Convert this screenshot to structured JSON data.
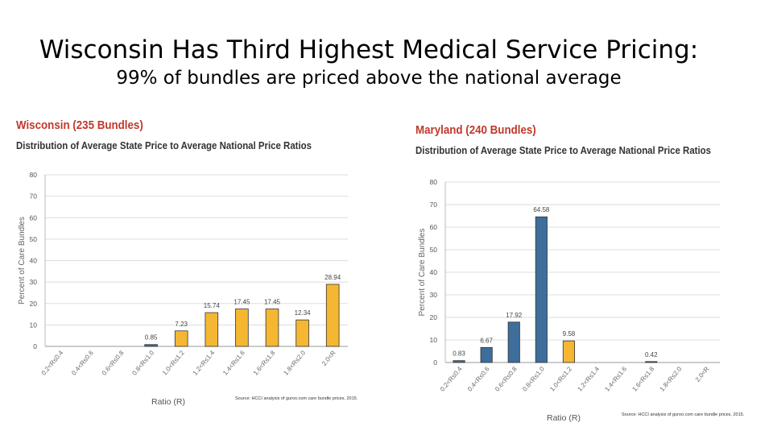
{
  "slide": {
    "title": "Wisconsin Has Third Highest Medical Service Pricing:",
    "subtitle": "99% of bundles are priced above the national average"
  },
  "colors": {
    "accent_bar": "#f5b731",
    "base_bar": "#3d6e9c",
    "panel_title": "#c0392b",
    "grid": "#dddddd"
  },
  "chart_data": [
    {
      "type": "bar",
      "title": "Wisconsin (235 Bundles)",
      "subtitle": "Distribution of Average State Price to Average National Price Ratios",
      "xlabel": "Ratio (R)",
      "ylabel": "Percent of Care Bundles",
      "ylim": [
        0,
        80
      ],
      "yticks": [
        0,
        10,
        20,
        30,
        40,
        50,
        60,
        70,
        80
      ],
      "grid": true,
      "categories": [
        "0.2<R≤0.4",
        "0.4<R≤0.6",
        "0.6<R≤0.8",
        "0.8<R≤1.0",
        "1.0<R≤1.2",
        "1.2<R≤1.4",
        "1.4<R≤1.6",
        "1.6<R≤1.8",
        "1.8<R≤2.0",
        "2.0<R"
      ],
      "values": [
        0,
        0,
        0,
        0.85,
        7.23,
        15.74,
        17.45,
        17.45,
        12.34,
        28.94
      ],
      "labels": [
        "",
        "",
        "",
        "0.85",
        "7.23",
        "15.74",
        "17.45",
        "17.45",
        "12.34",
        "28.94"
      ],
      "colors": [
        "#3d6e9c",
        "#3d6e9c",
        "#3d6e9c",
        "#3d6e9c",
        "#f5b731",
        "#f5b731",
        "#f5b731",
        "#f5b731",
        "#f5b731",
        "#f5b731"
      ],
      "source": "Source: HCCI analysis of guroo.com care bundle prices, 2015."
    },
    {
      "type": "bar",
      "title": "Maryland (240 Bundles)",
      "subtitle": "Distribution of Average State Price to Average National Price Ratios",
      "xlabel": "Ratio (R)",
      "ylabel": "Percent of Care Bundles",
      "ylim": [
        0,
        80
      ],
      "yticks": [
        0,
        10,
        20,
        30,
        40,
        50,
        60,
        70,
        80
      ],
      "grid": true,
      "categories": [
        "0.2<R≤0.4",
        "0.4<R≤0.6",
        "0.6<R≤0.8",
        "0.8<R≤1.0",
        "1.0<R≤1.2",
        "1.2<R≤1.4",
        "1.4<R≤1.6",
        "1.6<R≤1.8",
        "1.8<R≤2.0",
        "2.0<R"
      ],
      "values": [
        0.83,
        6.67,
        17.92,
        64.58,
        9.58,
        0,
        0,
        0.42,
        0,
        0
      ],
      "labels": [
        "0.83",
        "6.67",
        "17.92",
        "64.58",
        "9.58",
        "",
        "",
        "0.42",
        "",
        ""
      ],
      "colors": [
        "#3d6e9c",
        "#3d6e9c",
        "#3d6e9c",
        "#3d6e9c",
        "#f5b731",
        "#3d6e9c",
        "#3d6e9c",
        "#3d6e9c",
        "#3d6e9c",
        "#3d6e9c"
      ],
      "source": "Source: HCCI analysis of guroo.com care bundle prices, 2015."
    }
  ]
}
